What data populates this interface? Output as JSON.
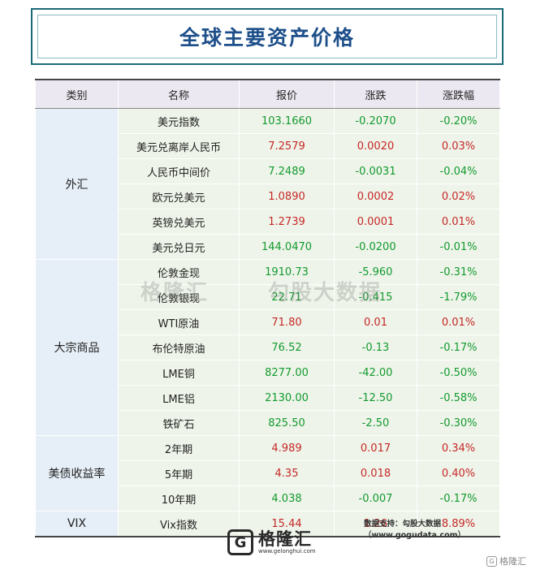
{
  "title": "全球主要资产价格",
  "headers": [
    "类别",
    "名称",
    "报价",
    "涨跌",
    "涨跌幅"
  ],
  "categories": {
    "fx": "外汇",
    "commodities": "大宗商品",
    "ust": "美债收益率",
    "vix": "VIX"
  },
  "rows": [
    {
      "name": "美元指数",
      "price": "103.1660",
      "change": "-0.2070",
      "pct": "-0.20%"
    },
    {
      "name": "美元兑离岸人民币",
      "price": "7.2579",
      "change": "0.0020",
      "pct": "0.03%"
    },
    {
      "name": "人民币中间价",
      "price": "7.2489",
      "change": "-0.0031",
      "pct": "-0.04%"
    },
    {
      "name": "欧元兑美元",
      "price": "1.0890",
      "change": "0.0002",
      "pct": "0.02%"
    },
    {
      "name": "英镑兑美元",
      "price": "1.2739",
      "change": "0.0001",
      "pct": "0.01%"
    },
    {
      "name": "美元兑日元",
      "price": "144.0470",
      "change": "-0.0200",
      "pct": "-0.01%"
    },
    {
      "name": "伦敦金现",
      "price": "1910.73",
      "change": "-5.960",
      "pct": "-0.31%"
    },
    {
      "name": "伦敦银现",
      "price": "22.71",
      "change": "-0.415",
      "pct": "-1.79%"
    },
    {
      "name": "WTI原油",
      "price": "71.80",
      "change": "0.01",
      "pct": "0.01%"
    },
    {
      "name": "布伦特原油",
      "price": "76.52",
      "change": "-0.13",
      "pct": "-0.17%"
    },
    {
      "name": "LME铜",
      "price": "8277.00",
      "change": "-42.00",
      "pct": "-0.50%"
    },
    {
      "name": "LME铝",
      "price": "2130.00",
      "change": "-12.50",
      "pct": "-0.58%"
    },
    {
      "name": "铁矿石",
      "price": "825.50",
      "change": "-2.50",
      "pct": "-0.30%"
    },
    {
      "name": "2年期",
      "price": "4.989",
      "change": "0.017",
      "pct": "0.34%"
    },
    {
      "name": "5年期",
      "price": "4.35",
      "change": "0.018",
      "pct": "0.40%"
    },
    {
      "name": "10年期",
      "price": "4.038",
      "change": "-0.007",
      "pct": "-0.17%"
    },
    {
      "name": "Vix指数",
      "price": "15.44",
      "change": "1.26",
      "pct": "8.89%"
    }
  ],
  "colors": {
    "up": "#c62828",
    "down": "#129a2f",
    "title": "#1d4f8a",
    "frame": "#1b6a78"
  },
  "source_note": "数据支持：勾股大数据（www.gogudata.com）",
  "watermark": {
    "left": "格隆汇",
    "right": "勾股大数据"
  },
  "logo": {
    "name": "格隆汇",
    "url": "www.gelonghui.com",
    "glyph": "G"
  },
  "corner_mark": "格隆汇"
}
